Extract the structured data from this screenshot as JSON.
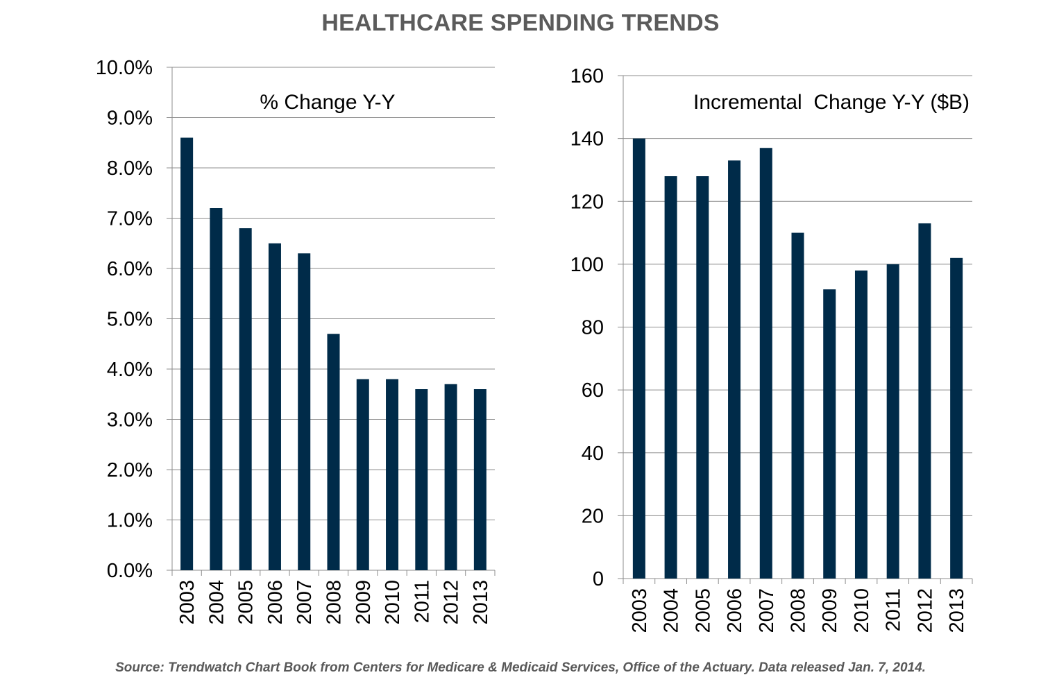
{
  "title": "HEALTHCARE SPENDING TRENDS",
  "source": "Source: Trendwatch Chart Book from Centers for Medicare & Medicaid Services, Office of the Actuary. Data released Jan. 7, 2014.",
  "colors": {
    "bar": "#002b49",
    "grid": "#8c8c8c",
    "title": "#5b5b5b"
  },
  "chart_data": [
    {
      "type": "bar",
      "title": "% Change Y-Y",
      "categories": [
        "2003",
        "2004",
        "2005",
        "2006",
        "2007",
        "2008",
        "2009",
        "2010",
        "2011",
        "2012",
        "2013"
      ],
      "values": [
        8.6,
        7.2,
        6.8,
        6.5,
        6.3,
        4.7,
        3.8,
        3.8,
        3.6,
        3.7,
        3.6
      ],
      "ylim": [
        0,
        10
      ],
      "yticks": [
        0,
        1,
        2,
        3,
        4,
        5,
        6,
        7,
        8,
        9,
        10
      ],
      "ytick_labels": [
        "0.0%",
        "1.0%",
        "2.0%",
        "3.0%",
        "4.0%",
        "5.0%",
        "6.0%",
        "7.0%",
        "8.0%",
        "9.0%",
        "10.0%"
      ],
      "xlabel": "",
      "ylabel": "",
      "grid": true
    },
    {
      "type": "bar",
      "title": "Incremental  Change Y-Y ($B)",
      "categories": [
        "2003",
        "2004",
        "2005",
        "2006",
        "2007",
        "2008",
        "2009",
        "2010",
        "2011",
        "2012",
        "2013"
      ],
      "values": [
        140,
        128,
        128,
        133,
        137,
        110,
        92,
        98,
        100,
        113,
        102
      ],
      "ylim": [
        0,
        160
      ],
      "yticks": [
        0,
        20,
        40,
        60,
        80,
        100,
        120,
        140,
        160
      ],
      "ytick_labels": [
        "0",
        "20",
        "40",
        "60",
        "80",
        "100",
        "120",
        "140",
        "160"
      ],
      "xlabel": "",
      "ylabel": "",
      "grid": true
    }
  ]
}
